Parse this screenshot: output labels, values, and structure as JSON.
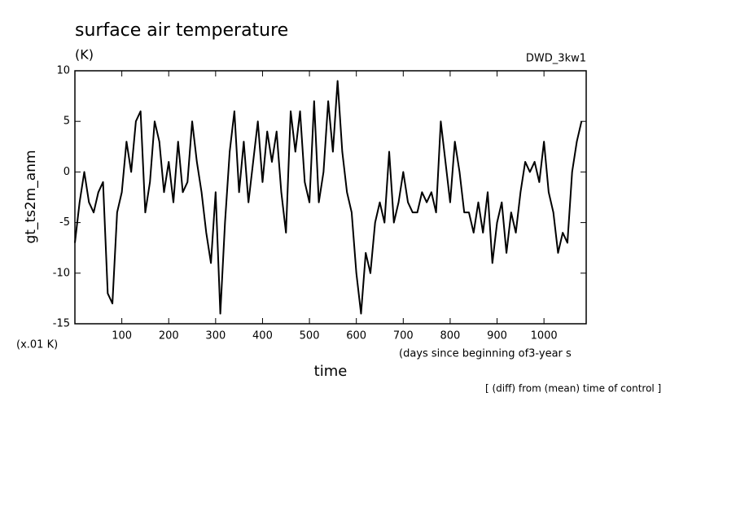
{
  "chart_data": {
    "type": "line",
    "title": "surface air temperature",
    "subtitle": "(K)",
    "run_label": "DWD_3kw1",
    "y_label": "gt_ts2m_anm",
    "y_unit_label": "(x.01 K)",
    "x_unit_label": "(days since beginning of3-year s",
    "x_label": "time",
    "footnote": "[ (diff) from (mean) time of control ]",
    "color": "#000000",
    "xlim": [
      0,
      1090
    ],
    "ylim": [
      -15,
      10
    ],
    "xticks": [
      100,
      200,
      300,
      400,
      500,
      600,
      700,
      800,
      900,
      1000
    ],
    "yticks": [
      -15,
      -10,
      -5,
      0,
      5,
      10
    ],
    "x": [
      0,
      10,
      20,
      30,
      40,
      50,
      60,
      70,
      80,
      90,
      100,
      110,
      120,
      130,
      140,
      150,
      160,
      170,
      180,
      190,
      200,
      210,
      220,
      230,
      240,
      250,
      260,
      270,
      280,
      290,
      300,
      310,
      320,
      330,
      340,
      350,
      360,
      370,
      380,
      390,
      400,
      410,
      420,
      430,
      440,
      450,
      460,
      470,
      480,
      490,
      500,
      510,
      520,
      530,
      540,
      550,
      560,
      570,
      580,
      590,
      600,
      610,
      620,
      630,
      640,
      650,
      660,
      670,
      680,
      690,
      700,
      710,
      720,
      730,
      740,
      750,
      760,
      770,
      780,
      790,
      800,
      810,
      820,
      830,
      840,
      850,
      860,
      870,
      880,
      890,
      900,
      910,
      920,
      930,
      940,
      950,
      960,
      970,
      980,
      990,
      1000,
      1010,
      1020,
      1030,
      1040,
      1050,
      1060,
      1070,
      1080
    ],
    "values": [
      -7,
      -3,
      0,
      -3,
      -4,
      -2,
      -1,
      -12,
      -13,
      -4,
      -2,
      3,
      0,
      5,
      6,
      -4,
      -1,
      5,
      3,
      -2,
      1,
      -3,
      3,
      -2,
      -1,
      5,
      1,
      -2,
      -6,
      -9,
      -2,
      -14,
      -5,
      2,
      6,
      -2,
      3,
      -3,
      1,
      5,
      -1,
      4,
      1,
      4,
      -2,
      -6,
      6,
      2,
      6,
      -1,
      -3,
      7,
      -3,
      0,
      7,
      2,
      9,
      2,
      -2,
      -4,
      -10,
      -14,
      -8,
      -10,
      -5,
      -3,
      -5,
      2,
      -5,
      -3,
      0,
      -3,
      -4,
      -4,
      -2,
      -3,
      -2,
      -4,
      5,
      1,
      -3,
      3,
      0,
      -4,
      -4,
      -6,
      -3,
      -6,
      -2,
      -9,
      -5,
      -3,
      -8,
      -4,
      -6,
      -2,
      1,
      0,
      1,
      -1,
      3,
      -2,
      -4,
      -8,
      -6,
      -7,
      0,
      3,
      5
    ]
  }
}
